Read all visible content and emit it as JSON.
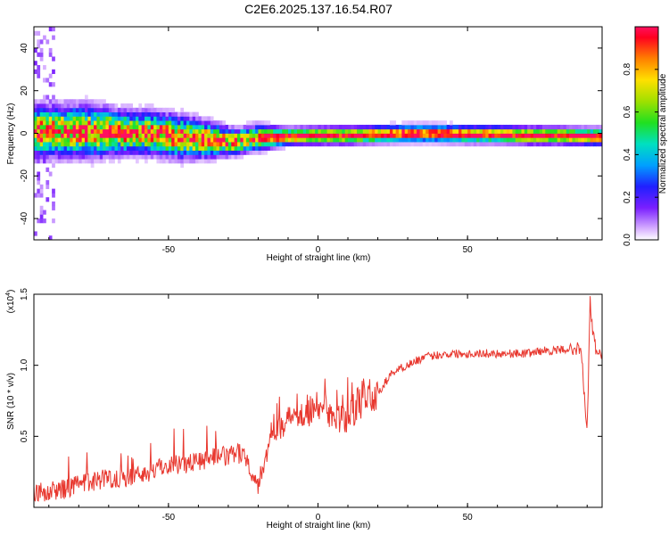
{
  "title": "C2E6.2025.137.16.54.R07",
  "chart_data": [
    {
      "type": "heatmap",
      "xlabel": "Height of straight line (km)",
      "ylabel": "Frequency (Hz)",
      "xlim": [
        -95,
        95
      ],
      "ylim": [
        -50,
        50
      ],
      "x_ticks": [
        -50,
        0,
        50
      ],
      "y_ticks": [
        -40,
        -20,
        0,
        20,
        40
      ],
      "x_tick_labels": [
        "-50",
        "0",
        "50"
      ],
      "y_tick_labels": [
        "-40",
        "-20",
        "0",
        "20",
        "40"
      ],
      "colorbar": {
        "label": "Normalized spectral amplitude",
        "range": [
          0,
          1
        ],
        "ticks": [
          0.0,
          0.2,
          0.4,
          0.6,
          0.8
        ],
        "tick_labels": [
          "0.0",
          "0.2",
          "0.4",
          "0.6",
          "0.8"
        ]
      },
      "ridge": {
        "x": [
          -95,
          -85,
          -75,
          -65,
          -55,
          -45,
          -35,
          -28,
          -20,
          -10,
          0,
          5,
          10,
          20,
          30,
          40,
          50,
          60,
          70,
          80,
          90,
          95
        ],
        "freq": [
          1,
          1,
          1,
          0.5,
          0,
          -2,
          -3,
          -4,
          -2,
          -1.5,
          -1,
          -1,
          -1,
          -0.5,
          0,
          0,
          -0.5,
          -0.5,
          -1,
          -1,
          -1.5,
          -1.5
        ],
        "spread": [
          6,
          6,
          6,
          5,
          5,
          5,
          4,
          3,
          3,
          2,
          2,
          2,
          2,
          2,
          2,
          2,
          2,
          2,
          2,
          2,
          2,
          2
        ]
      }
    },
    {
      "type": "line",
      "xlabel": "Height of straight line (km)",
      "ylabel": "SNR (10 * v/v)",
      "y_multiplier": "(x10",
      "y_multiplier_exp": "4",
      "y_multiplier_close": ")",
      "xlim": [
        -95,
        95
      ],
      "ylim": [
        0,
        1.5
      ],
      "x_ticks": [
        -50,
        0,
        50
      ],
      "y_ticks": [
        0.5,
        1.0,
        1.5
      ],
      "x_tick_labels": [
        "-50",
        "0",
        "50"
      ],
      "y_tick_labels": [
        "0.5",
        "1.0",
        "1.5"
      ],
      "color": "#e8382f",
      "series": [
        {
          "x": [
            -95,
            -90,
            -85,
            -80,
            -75,
            -70,
            -65,
            -60,
            -55,
            -50,
            -45,
            -40,
            -35,
            -30,
            -25,
            -20,
            -15,
            -10,
            -5,
            0,
            5,
            10,
            15,
            20,
            25,
            30,
            35,
            40,
            45,
            50,
            55,
            60,
            65,
            70,
            75,
            80,
            85,
            88,
            90,
            91,
            92,
            93,
            95
          ],
          "y": [
            0.08,
            0.1,
            0.12,
            0.15,
            0.18,
            0.2,
            0.2,
            0.22,
            0.25,
            0.3,
            0.3,
            0.32,
            0.35,
            0.35,
            0.38,
            0.15,
            0.55,
            0.6,
            0.68,
            0.68,
            0.6,
            0.62,
            0.75,
            0.8,
            0.95,
            1.0,
            1.05,
            1.07,
            1.08,
            1.08,
            1.08,
            1.08,
            1.08,
            1.08,
            1.1,
            1.1,
            1.12,
            1.1,
            0.5,
            1.45,
            1.2,
            1.1,
            1.07
          ]
        }
      ]
    }
  ]
}
